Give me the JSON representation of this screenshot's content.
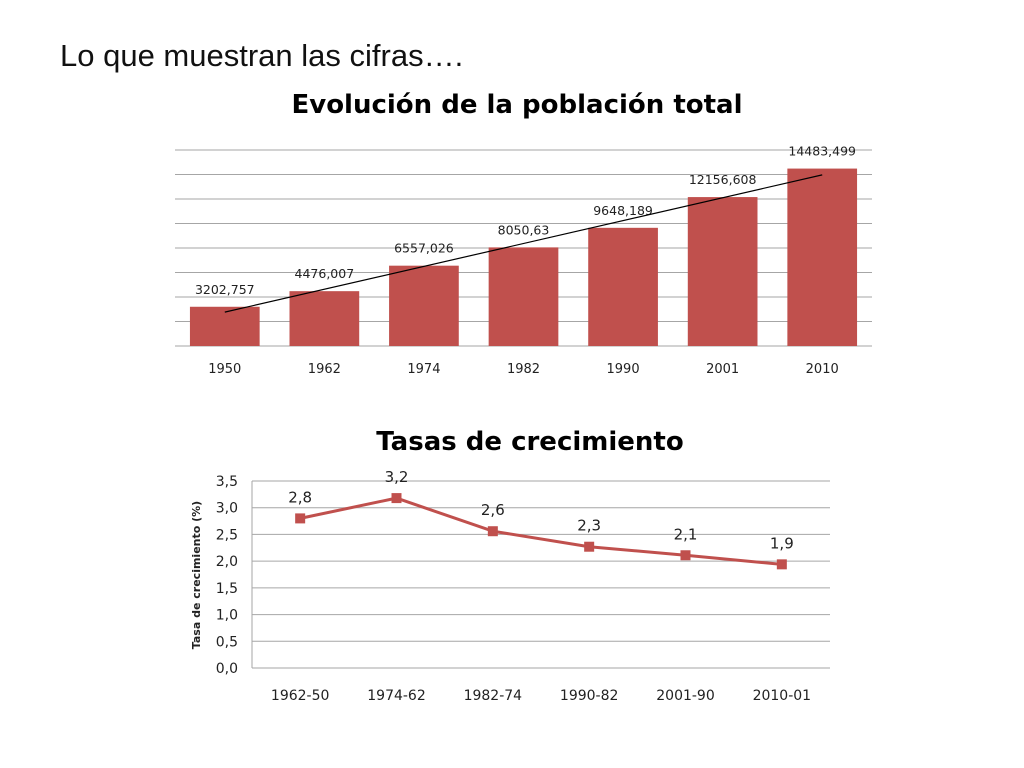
{
  "slide": {
    "title": "Lo que muestran las cifras…."
  },
  "chart_data": [
    {
      "type": "bar",
      "title": "Evolución de la población total",
      "categories": [
        "1950",
        "1962",
        "1974",
        "1982",
        "1990",
        "2001",
        "2010"
      ],
      "values": [
        3202.757,
        4476.007,
        6557.026,
        8050.63,
        9648.189,
        12156.608,
        14483.499
      ],
      "data_labels": [
        "3202,757",
        "4476,007",
        "6557,026",
        "8050,63",
        "9648,189",
        "12156,608",
        "14483,499"
      ],
      "ylim": [
        0,
        16000
      ],
      "grid": true,
      "trendline": true,
      "colors": {
        "bar": "#c0504d",
        "grid": "#a6a6a6",
        "trend": "#000000"
      }
    },
    {
      "type": "line",
      "title": "Tasas de crecimiento",
      "categories": [
        "1962-50",
        "1974-62",
        "1982-74",
        "1990-82",
        "2001-90",
        "2010-01"
      ],
      "values": [
        2.8,
        3.18,
        2.56,
        2.27,
        2.11,
        1.94
      ],
      "data_labels": [
        "2,8",
        "3,2",
        "2,6",
        "2,3",
        "2,1",
        "1,9"
      ],
      "ylabel": "Tasa de crecimiento (%)",
      "ylim": [
        0,
        3.5
      ],
      "y_ticks": [
        "0,0",
        "0,5",
        "1,0",
        "1,5",
        "2,0",
        "2,5",
        "3,0",
        "3,5"
      ],
      "grid": true,
      "colors": {
        "line": "#c0504d",
        "grid": "#a6a6a6"
      }
    }
  ]
}
